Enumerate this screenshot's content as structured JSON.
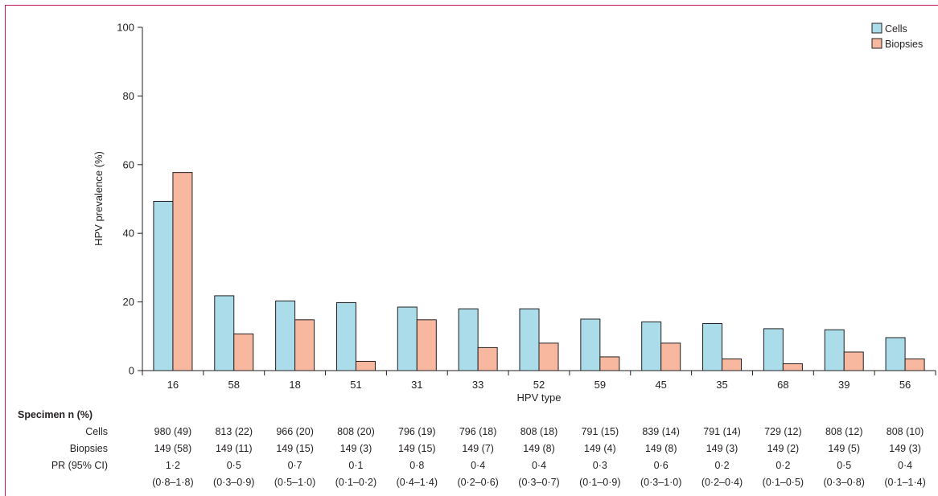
{
  "chart_data": {
    "type": "bar",
    "xlabel": "HPV type",
    "ylabel": "HPV prevalence (%)",
    "ylim": [
      0,
      100
    ],
    "yticks": [
      0,
      20,
      40,
      60,
      80,
      100
    ],
    "grid": false,
    "legend_position": "top-right",
    "categories": [
      "16",
      "58",
      "18",
      "51",
      "31",
      "33",
      "52",
      "59",
      "45",
      "35",
      "68",
      "39",
      "56"
    ],
    "series": [
      {
        "name": "Cells",
        "color": "#aadcea",
        "values": [
          49.3,
          21.8,
          20.3,
          19.8,
          18.5,
          18.0,
          18.0,
          15.0,
          14.2,
          13.7,
          12.2,
          11.9,
          9.6
        ]
      },
      {
        "name": "Biopsies",
        "color": "#f8b8a0",
        "values": [
          57.7,
          10.7,
          14.8,
          2.7,
          14.8,
          6.7,
          8.0,
          4.0,
          8.0,
          3.4,
          2.0,
          5.4,
          3.4
        ]
      }
    ]
  },
  "table": {
    "title": "Specimen n (%)",
    "rows": [
      {
        "label": "Cells",
        "cells": [
          "980 (49)",
          "813 (22)",
          "966 (20)",
          "808 (20)",
          "796 (19)",
          "796 (18)",
          "808 (18)",
          "791 (15)",
          "839 (14)",
          "791 (14)",
          "729 (12)",
          "808 (12)",
          "808 (10)"
        ]
      },
      {
        "label": "Biopsies",
        "cells": [
          "149 (58)",
          "149 (11)",
          "149 (15)",
          "149 (3)",
          "149 (15)",
          "149 (7)",
          "149 (8)",
          "149 (4)",
          "149 (8)",
          "149 (3)",
          "149 (2)",
          "149 (5)",
          "149 (3)"
        ]
      },
      {
        "label": "PR (95% CI)",
        "cells": [
          "1·2",
          "0·5",
          "0·7",
          "0·1",
          "0·8",
          "0·4",
          "0·4",
          "0·3",
          "0·6",
          "0·2",
          "0·2",
          "0·5",
          "0·4"
        ]
      }
    ],
    "ci": [
      "(0·8–1·8)",
      "(0·3–0·9)",
      "(0·5–1·0)",
      "(0·1–0·2)",
      "(0·4–1·4)",
      "(0·2–0·6)",
      "(0·3–0·7)",
      "(0·1–0·9)",
      "(0·3–1·0)",
      "(0·2–0·4)",
      "(0·1–0·5)",
      "(0·3–0·8)",
      "(0·1–1·4)"
    ]
  }
}
